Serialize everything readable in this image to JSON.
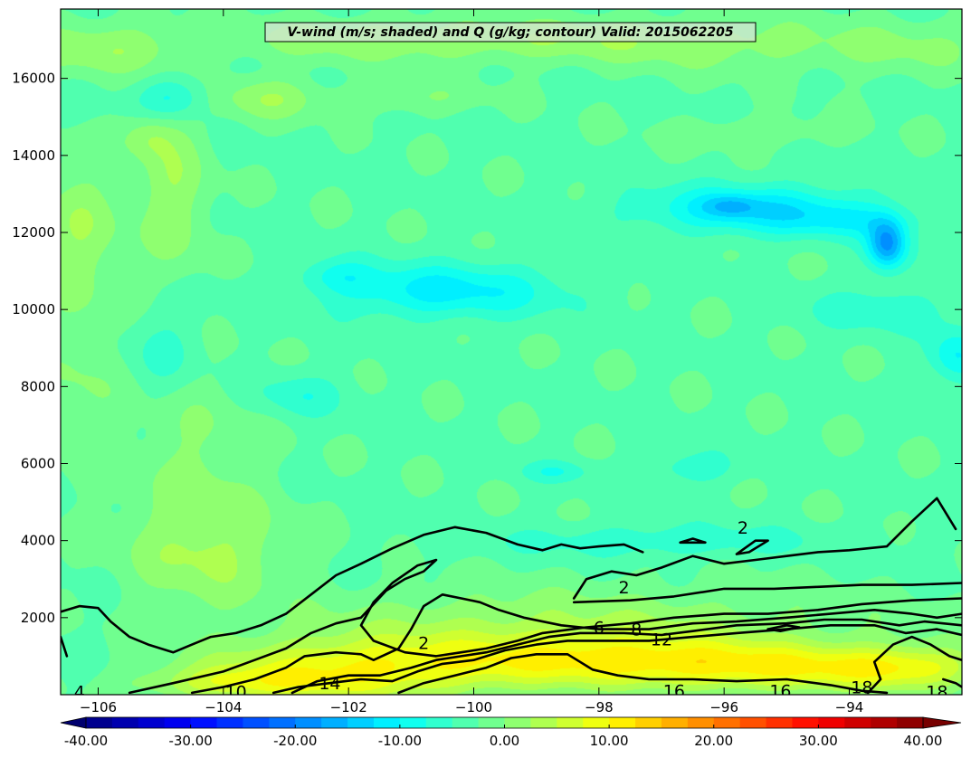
{
  "chart_data": {
    "type": "heatmap",
    "title": "V-wind (m/s; shaded) and Q (g/kg; contour) Valid: 2015062205",
    "xlabel": "",
    "ylabel": "",
    "xlim": [
      -106.6,
      -92.2
    ],
    "ylim": [
      0,
      17800
    ],
    "x_ticks": [
      -106,
      -104,
      -102,
      -100,
      -98,
      -96,
      -94
    ],
    "x_tick_labels": [
      "−106",
      "−104",
      "−102",
      "−100",
      "−98",
      "−96",
      "−94"
    ],
    "y_ticks": [
      2000,
      4000,
      6000,
      8000,
      10000,
      12000,
      14000,
      16000
    ],
    "y_tick_labels": [
      "2000",
      "4000",
      "6000",
      "8000",
      "10000",
      "12000",
      "14000",
      "16000"
    ],
    "colorbar": {
      "vmin": -40,
      "vmax": 40,
      "step": 2.5,
      "extend": "both",
      "tick_values": [
        -40,
        -30,
        -20,
        -10,
        0,
        10,
        20,
        30,
        40
      ],
      "tick_labels": [
        "-40.00",
        "-30.00",
        "-20.00",
        "-10.00",
        "0.00",
        "10.00",
        "20.00",
        "30.00",
        "40.00"
      ]
    },
    "shaded_field": {
      "variable": "V-wind",
      "units": "m/s",
      "background_value": -3,
      "blobs": [
        {
          "x": -102,
          "y": 600,
          "sx": 1.6,
          "sy": 600,
          "v": 12
        },
        {
          "x": -98,
          "y": 900,
          "sx": 1.8,
          "sy": 500,
          "v": 11
        },
        {
          "x": -95,
          "y": 700,
          "sx": 1.6,
          "sy": 450,
          "v": 10
        },
        {
          "x": -93,
          "y": 700,
          "sx": 0.9,
          "sy": 400,
          "v": 8
        },
        {
          "x": -104,
          "y": 300,
          "sx": 1.0,
          "sy": 300,
          "v": 6
        },
        {
          "x": -100,
          "y": 1800,
          "sx": 2.2,
          "sy": 700,
          "v": 4
        },
        {
          "x": -96,
          "y": 1900,
          "sx": 2.5,
          "sy": 700,
          "v": 3
        },
        {
          "x": -104.3,
          "y": 3800,
          "sx": 0.9,
          "sy": 1100,
          "v": 6
        },
        {
          "x": -104.4,
          "y": 6500,
          "sx": 0.7,
          "sy": 1200,
          "v": 3
        },
        {
          "x": -106.3,
          "y": 12000,
          "sx": 0.5,
          "sy": 1300,
          "v": 5
        },
        {
          "x": -106.3,
          "y": 8000,
          "sx": 0.5,
          "sy": 1500,
          "v": 3
        },
        {
          "x": -104.8,
          "y": 13000,
          "sx": 0.4,
          "sy": 1500,
          "v": 5
        },
        {
          "x": -105.2,
          "y": 14500,
          "sx": 0.3,
          "sy": 400,
          "v": 4
        },
        {
          "x": -106,
          "y": 16800,
          "sx": 1.0,
          "sy": 500,
          "v": 5
        },
        {
          "x": -103.3,
          "y": 15500,
          "sx": 0.6,
          "sy": 400,
          "v": 5
        },
        {
          "x": -102,
          "y": 17000,
          "sx": 1.5,
          "sy": 400,
          "v": 4
        },
        {
          "x": -99,
          "y": 17000,
          "sx": 1.5,
          "sy": 400,
          "v": 4
        },
        {
          "x": -96,
          "y": 16900,
          "sx": 1.5,
          "sy": 500,
          "v": 4
        },
        {
          "x": -93,
          "y": 16800,
          "sx": 1.0,
          "sy": 500,
          "v": 3
        },
        {
          "x": -101,
          "y": 15500,
          "sx": 0.8,
          "sy": 300,
          "v": 3
        },
        {
          "x": -95.5,
          "y": 14600,
          "sx": 1.0,
          "sy": 300,
          "v": 2.5
        },
        {
          "x": -100.5,
          "y": 10500,
          "sx": 1.3,
          "sy": 500,
          "v": -8
        },
        {
          "x": -102.2,
          "y": 10900,
          "sx": 0.4,
          "sy": 300,
          "v": -4
        },
        {
          "x": -95.5,
          "y": 12600,
          "sx": 1.3,
          "sy": 450,
          "v": -9
        },
        {
          "x": -95.9,
          "y": 12700,
          "sx": 0.3,
          "sy": 200,
          "v": -5
        },
        {
          "x": -93.4,
          "y": 11700,
          "sx": 0.22,
          "sy": 450,
          "v": -15
        },
        {
          "x": -94,
          "y": 12300,
          "sx": 0.7,
          "sy": 300,
          "v": -4
        },
        {
          "x": -92.3,
          "y": 8800,
          "sx": 0.3,
          "sy": 500,
          "v": -7
        },
        {
          "x": -93.5,
          "y": 10000,
          "sx": 0.8,
          "sy": 400,
          "v": -4
        },
        {
          "x": -104.8,
          "y": 15500,
          "sx": 0.4,
          "sy": 400,
          "v": -6
        },
        {
          "x": -105,
          "y": 9000,
          "sx": 0.4,
          "sy": 800,
          "v": -3
        },
        {
          "x": -96.5,
          "y": 5900,
          "sx": 0.5,
          "sy": 300,
          "v": -4
        },
        {
          "x": -98.7,
          "y": 5800,
          "sx": 0.4,
          "sy": 200,
          "v": -4
        },
        {
          "x": -97,
          "y": 4000,
          "sx": 1.8,
          "sy": 300,
          "v": -4
        },
        {
          "x": -102.8,
          "y": 7800,
          "sx": 0.5,
          "sy": 400,
          "v": -4
        }
      ]
    },
    "contour_lines": [
      {
        "level": 4,
        "points": [
          [
            -106.6,
            2150
          ],
          [
            -106.3,
            2300
          ],
          [
            -106,
            2250
          ],
          [
            -105.8,
            1900
          ],
          [
            -105.5,
            1500
          ],
          [
            -105.2,
            1300
          ],
          [
            -104.8,
            1100
          ],
          [
            -104.5,
            1300
          ],
          [
            -104.2,
            1500
          ],
          [
            -103.8,
            1600
          ],
          [
            -103.4,
            1800
          ],
          [
            -103,
            2100
          ],
          [
            -102.6,
            2600
          ],
          [
            -102.2,
            3100
          ],
          [
            -101.8,
            3400
          ],
          [
            -101.3,
            3800
          ],
          [
            -100.8,
            4150
          ],
          [
            -100.3,
            4350
          ],
          [
            -99.8,
            4200
          ],
          [
            -99.3,
            3900
          ],
          [
            -98.9,
            3750
          ],
          [
            -98.6,
            3900
          ],
          [
            -98.3,
            3800
          ],
          [
            -98,
            3850
          ],
          [
            -97.6,
            3900
          ],
          [
            -97.3,
            3700
          ]
        ]
      },
      {
        "level": 2,
        "points": [
          [
            -95.8,
            3650
          ],
          [
            -95.5,
            4000
          ],
          [
            -95.3,
            4000
          ],
          [
            -95.6,
            3700
          ],
          [
            -95.8,
            3650
          ]
        ]
      },
      {
        "level": 2,
        "points": [
          [
            -96.7,
            3950
          ],
          [
            -96.5,
            4050
          ],
          [
            -96.3,
            3950
          ],
          [
            -96.7,
            3950
          ]
        ]
      },
      {
        "level": 2,
        "points": [
          [
            -98.4,
            2500
          ],
          [
            -98.2,
            3000
          ],
          [
            -97.8,
            3200
          ],
          [
            -97.4,
            3100
          ],
          [
            -97,
            3300
          ],
          [
            -96.5,
            3600
          ],
          [
            -96,
            3400
          ],
          [
            -95.5,
            3500
          ],
          [
            -95,
            3600
          ],
          [
            -94.5,
            3700
          ],
          [
            -94,
            3750
          ],
          [
            -93.4,
            3850
          ],
          [
            -93,
            4500
          ],
          [
            -92.6,
            5100
          ],
          [
            -92.3,
            4300
          ]
        ]
      },
      {
        "level": 2,
        "points": [
          [
            -98.4,
            2400
          ],
          [
            -97.5,
            2450
          ],
          [
            -96.8,
            2550
          ],
          [
            -96,
            2750
          ],
          [
            -95.2,
            2750
          ],
          [
            -94.5,
            2800
          ],
          [
            -93.8,
            2850
          ],
          [
            -93,
            2850
          ],
          [
            -92.2,
            2900
          ]
        ]
      },
      {
        "level": 4,
        "points": [
          [
            -106.6,
            1500
          ],
          [
            -106.5,
            1000
          ]
        ]
      },
      {
        "level": 6,
        "points": [
          [
            -105.5,
            50
          ],
          [
            -104.8,
            300
          ],
          [
            -104,
            600
          ],
          [
            -103.5,
            900
          ],
          [
            -103,
            1200
          ],
          [
            -102.6,
            1600
          ],
          [
            -102.2,
            1850
          ],
          [
            -101.8,
            2000
          ],
          [
            -101.4,
            2700
          ],
          [
            -101.1,
            3000
          ],
          [
            -100.8,
            3200
          ],
          [
            -100.6,
            3500
          ],
          [
            -100.9,
            3350
          ],
          [
            -101.3,
            2900
          ],
          [
            -101.6,
            2400
          ],
          [
            -101.8,
            1800
          ],
          [
            -101.6,
            1400
          ],
          [
            -101.1,
            1100
          ],
          [
            -100.6,
            1000
          ],
          [
            -100.2,
            1100
          ],
          [
            -99.8,
            1200
          ],
          [
            -99.3,
            1400
          ],
          [
            -98.9,
            1600
          ],
          [
            -98.2,
            1750
          ],
          [
            -97.5,
            1850
          ],
          [
            -96.8,
            2000
          ],
          [
            -96,
            2100
          ],
          [
            -95.3,
            2100
          ],
          [
            -94.5,
            2200
          ],
          [
            -93.8,
            2350
          ],
          [
            -93,
            2450
          ],
          [
            -92.2,
            2500
          ]
        ]
      },
      {
        "level": 8,
        "points": [
          [
            -104.5,
            50
          ],
          [
            -104,
            200
          ],
          [
            -103.5,
            400
          ],
          [
            -103,
            700
          ],
          [
            -102.7,
            1000
          ],
          [
            -102.2,
            1100
          ],
          [
            -101.8,
            1050
          ],
          [
            -101.6,
            900
          ],
          [
            -101.2,
            1200
          ],
          [
            -101,
            1700
          ],
          [
            -100.8,
            2300
          ],
          [
            -100.5,
            2600
          ],
          [
            -100.2,
            2500
          ],
          [
            -99.9,
            2400
          ],
          [
            -99.6,
            2200
          ],
          [
            -99.2,
            2000
          ],
          [
            -98.6,
            1800
          ],
          [
            -98,
            1700
          ],
          [
            -97.2,
            1700
          ],
          [
            -96.5,
            1850
          ],
          [
            -95.8,
            1900
          ],
          [
            -95,
            2000
          ],
          [
            -94.3,
            2100
          ],
          [
            -93.6,
            2200
          ],
          [
            -93,
            2100
          ],
          [
            -92.6,
            2000
          ],
          [
            -92.2,
            2100
          ]
        ]
      },
      {
        "level": 12,
        "points": [
          [
            -102.9,
            50
          ],
          [
            -102.5,
            350
          ],
          [
            -102,
            500
          ],
          [
            -101.5,
            500
          ],
          [
            -101,
            700
          ],
          [
            -100.6,
            900
          ],
          [
            -100.2,
            1000
          ],
          [
            -99.8,
            1100
          ],
          [
            -99.3,
            1300
          ],
          [
            -98.8,
            1500
          ],
          [
            -98.3,
            1600
          ],
          [
            -97.6,
            1600
          ],
          [
            -97,
            1550
          ],
          [
            -96.5,
            1650
          ],
          [
            -95.8,
            1800
          ],
          [
            -95,
            1850
          ],
          [
            -94.4,
            1950
          ],
          [
            -93.8,
            1950
          ],
          [
            -93.2,
            1800
          ],
          [
            -92.8,
            1900
          ],
          [
            -92.2,
            1800
          ]
        ]
      },
      {
        "level": 14,
        "points": [
          [
            -103.2,
            50
          ],
          [
            -102.8,
            200
          ],
          [
            -102.3,
            300
          ],
          [
            -101.8,
            400
          ],
          [
            -101.3,
            350
          ],
          [
            -100.9,
            600
          ],
          [
            -100.5,
            800
          ],
          [
            -100,
            900
          ],
          [
            -99.5,
            1150
          ],
          [
            -99,
            1300
          ],
          [
            -98.5,
            1400
          ],
          [
            -97.9,
            1400
          ],
          [
            -97.2,
            1400
          ],
          [
            -96.5,
            1500
          ],
          [
            -95.8,
            1600
          ],
          [
            -95,
            1700
          ],
          [
            -94.3,
            1800
          ],
          [
            -93.6,
            1800
          ],
          [
            -93.1,
            1600
          ],
          [
            -92.6,
            1700
          ],
          [
            -92.2,
            1550
          ]
        ]
      },
      {
        "level": 16,
        "points": [
          [
            -101.2,
            50
          ],
          [
            -100.8,
            300
          ],
          [
            -100.3,
            500
          ],
          [
            -99.8,
            700
          ],
          [
            -99.4,
            950
          ],
          [
            -99,
            1050
          ],
          [
            -98.5,
            1050
          ],
          [
            -98.3,
            850
          ],
          [
            -98.1,
            650
          ],
          [
            -97.7,
            500
          ],
          [
            -97.2,
            400
          ],
          [
            -96.5,
            400
          ],
          [
            -95.8,
            350
          ],
          [
            -95,
            400
          ],
          [
            -94.3,
            250
          ],
          [
            -93.8,
            100
          ],
          [
            -93.4,
            50
          ]
        ]
      },
      {
        "level": 18,
        "points": [
          [
            -93.7,
            50
          ],
          [
            -93.5,
            400
          ],
          [
            -93.6,
            850
          ],
          [
            -93.3,
            1300
          ],
          [
            -93,
            1500
          ],
          [
            -92.7,
            1300
          ],
          [
            -92.4,
            1000
          ],
          [
            -92.2,
            900
          ]
        ]
      },
      {
        "level": 18,
        "points": [
          [
            -92.5,
            400
          ],
          [
            -92.3,
            300
          ],
          [
            -92.2,
            200
          ]
        ]
      },
      {
        "level": 12,
        "points": [
          [
            -95.3,
            1700
          ],
          [
            -95,
            1800
          ],
          [
            -94.8,
            1750
          ],
          [
            -95.1,
            1650
          ],
          [
            -95.3,
            1700
          ]
        ]
      }
    ],
    "contour_labels": [
      {
        "text": "2",
        "x": -95.7,
        "y": 4350
      },
      {
        "text": "2",
        "x": -97.6,
        "y": 2800
      },
      {
        "text": "2",
        "x": -100.8,
        "y": 1350
      },
      {
        "text": "6",
        "x": -98,
        "y": 1750
      },
      {
        "text": "8",
        "x": -97.4,
        "y": 1700
      },
      {
        "text": "12",
        "x": -97,
        "y": 1450
      },
      {
        "text": "14",
        "x": -102.3,
        "y": 300
      },
      {
        "text": "10",
        "x": -103.8,
        "y": 80
      },
      {
        "text": "16",
        "x": -96.8,
        "y": 100
      },
      {
        "text": "16",
        "x": -95.1,
        "y": 100
      },
      {
        "text": "18",
        "x": -93.8,
        "y": 200
      },
      {
        "text": "18",
        "x": -92.6,
        "y": 80
      },
      {
        "text": "4",
        "x": -106.3,
        "y": 80
      }
    ]
  }
}
